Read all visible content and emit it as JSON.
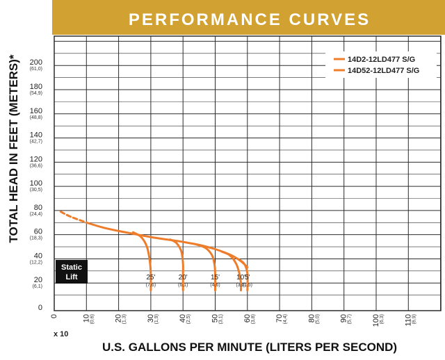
{
  "colors": {
    "banner": "#d1a131",
    "curve": "#ed7d2b",
    "grid": "#2b2b2b",
    "static_lift_box": "#111111"
  },
  "chart_data": {
    "type": "line",
    "title": "PERFORMANCE CURVES",
    "xlabel": "U.S. GALLONS PER MINUTE (LITERS PER SECOND)",
    "ylabel": "TOTAL HEAD IN FEET (METERS)*",
    "x_multiplier": "x 10",
    "xlim": [
      0,
      120
    ],
    "ylim": [
      0,
      220
    ],
    "grid": true,
    "legend_position": "top-right",
    "x_ticks": [
      {
        "value": 0,
        "label": "0",
        "metric": ""
      },
      {
        "value": 10,
        "label": "10",
        "metric": "(0,6)"
      },
      {
        "value": 20,
        "label": "20",
        "metric": "(1,3)"
      },
      {
        "value": 30,
        "label": "30",
        "metric": "(1,9)"
      },
      {
        "value": 40,
        "label": "40",
        "metric": "(2,5)"
      },
      {
        "value": 50,
        "label": "50",
        "metric": "(3,1)"
      },
      {
        "value": 60,
        "label": "60",
        "metric": "(3,8)"
      },
      {
        "value": 70,
        "label": "70",
        "metric": "(4,4)"
      },
      {
        "value": 80,
        "label": "80",
        "metric": "(5,0)"
      },
      {
        "value": 90,
        "label": "90",
        "metric": "(5,7)"
      },
      {
        "value": 100,
        "label": "100",
        "metric": "(6,3)"
      },
      {
        "value": 110,
        "label": "110",
        "metric": "(6,9)"
      }
    ],
    "y_ticks": [
      {
        "value": 0,
        "label": "0",
        "metric": ""
      },
      {
        "value": 20,
        "label": "20",
        "metric": "(6,1)"
      },
      {
        "value": 40,
        "label": "40",
        "metric": "(12,2)"
      },
      {
        "value": 60,
        "label": "60",
        "metric": "(18,3)"
      },
      {
        "value": 80,
        "label": "80",
        "metric": "(24,4)"
      },
      {
        "value": 100,
        "label": "100",
        "metric": "(30,5)"
      },
      {
        "value": 120,
        "label": "120",
        "metric": "(36,6)"
      },
      {
        "value": 140,
        "label": "140",
        "metric": "(42,7)"
      },
      {
        "value": 160,
        "label": "160",
        "metric": "(48,8)"
      },
      {
        "value": 180,
        "label": "180",
        "metric": "(54,9)"
      },
      {
        "value": 200,
        "label": "200",
        "metric": "(61,0)"
      }
    ],
    "series": [
      {
        "name": "14D2-12LD477 S/G",
        "main_curve": [
          [
            2,
            79
          ],
          [
            5,
            75
          ],
          [
            10,
            70
          ],
          [
            15,
            66
          ],
          [
            20,
            63
          ],
          [
            25,
            60.5
          ],
          [
            30,
            58
          ],
          [
            35,
            56
          ],
          [
            40,
            54
          ],
          [
            45,
            51.5
          ],
          [
            50,
            48
          ],
          [
            55,
            43
          ],
          [
            58,
            38
          ],
          [
            60,
            33
          ]
        ]
      },
      {
        "name": "14D52-12LD477 S/G",
        "main_curve": []
      }
    ],
    "suction_lift_curves": [
      {
        "lift": "25'",
        "metric": "(7,6)",
        "points": [
          [
            24.5,
            62
          ],
          [
            27,
            58
          ],
          [
            28.8,
            50
          ],
          [
            29.7,
            38
          ],
          [
            30,
            27
          ],
          [
            30,
            14
          ]
        ]
      },
      {
        "lift": "20'",
        "metric": "(6,1)",
        "points": [
          [
            36,
            56
          ],
          [
            38,
            53
          ],
          [
            39.5,
            46
          ],
          [
            40,
            36
          ],
          [
            40,
            27
          ],
          [
            40,
            14
          ]
        ]
      },
      {
        "lift": "15'",
        "metric": "(4,6)",
        "points": [
          [
            44,
            52
          ],
          [
            47,
            49
          ],
          [
            49,
            43
          ],
          [
            49.8,
            35
          ],
          [
            50,
            27
          ],
          [
            50,
            14
          ]
        ]
      },
      {
        "lift": "10'",
        "metric": "(3,0)",
        "points": [
          [
            52,
            46
          ],
          [
            54.5,
            43
          ],
          [
            56.5,
            36
          ],
          [
            57.5,
            28
          ],
          [
            58,
            20
          ],
          [
            58,
            14
          ]
        ]
      },
      {
        "lift": "5'",
        "metric": "(1,5)",
        "points": [
          [
            57,
            40
          ],
          [
            59,
            36
          ],
          [
            60,
            28
          ],
          [
            60,
            14
          ]
        ]
      }
    ],
    "annotations": [
      {
        "text": "Static",
        "subtext": "Lift",
        "position": "left, near y 20-40"
      }
    ]
  }
}
